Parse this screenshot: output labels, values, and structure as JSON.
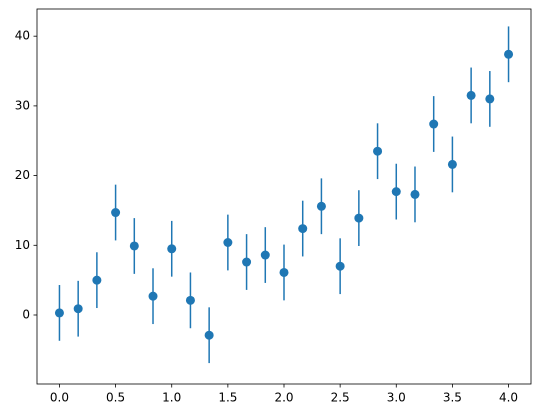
{
  "chart_data": {
    "type": "errorbar",
    "color": "#1f77b4",
    "x": [
      0,
      0.1667,
      0.3333,
      0.5,
      0.6667,
      0.8333,
      1,
      1.1667,
      1.3333,
      1.5,
      1.6667,
      1.8333,
      2,
      2.1667,
      2.3333,
      2.5,
      2.6667,
      2.8333,
      3,
      3.1667,
      3.3333,
      3.5,
      3.6667,
      3.8333,
      4
    ],
    "values": [
      0.3,
      0.9,
      5.0,
      14.7,
      9.9,
      2.7,
      9.5,
      2.1,
      -2.9,
      10.4,
      7.6,
      8.6,
      6.1,
      12.4,
      15.6,
      7.0,
      13.9,
      23.5,
      17.7,
      17.3,
      27.4,
      21.6,
      31.5,
      31.0,
      37.4
    ],
    "yerr": 4,
    "xlim": [
      -0.2,
      4.2
    ],
    "ylim": [
      -9.9,
      43.9
    ],
    "xticks": [
      {
        "value": 0,
        "label": "0.0"
      },
      {
        "value": 0.5,
        "label": "0.5"
      },
      {
        "value": 1,
        "label": "1.0"
      },
      {
        "value": 1.5,
        "label": "1.5"
      },
      {
        "value": 2,
        "label": "2.0"
      },
      {
        "value": 2.5,
        "label": "2.5"
      },
      {
        "value": 3,
        "label": "3.0"
      },
      {
        "value": 3.5,
        "label": "3.5"
      },
      {
        "value": 4,
        "label": "4.0"
      }
    ],
    "yticks": [
      0,
      10,
      20,
      30,
      40
    ]
  }
}
